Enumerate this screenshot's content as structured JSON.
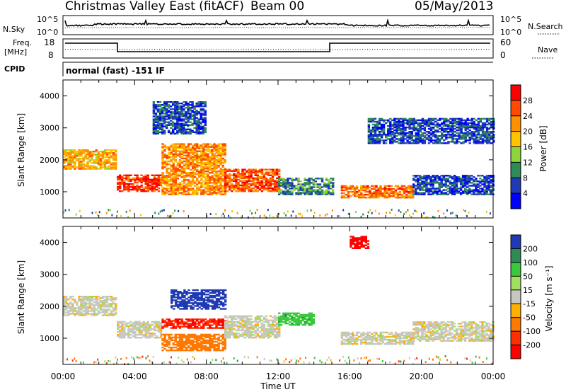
{
  "header": {
    "title": "Christmas Valley East (fitACF)",
    "beam": "Beam 00",
    "date": "05/May/2013"
  },
  "panels": {
    "nsky": {
      "left_label": "N.Sky",
      "left_ticks": [
        "10^5",
        "10^0"
      ],
      "right_ticks": [
        "10^5",
        "10^0"
      ],
      "right_label": "N.Search"
    },
    "freq": {
      "left_label_line1": "Freq.",
      "left_label_line2": "[MHz]",
      "left_ticks": [
        "18",
        "8"
      ],
      "right_ticks": [
        "60",
        "0"
      ],
      "right_label": "Nave"
    },
    "cpid": {
      "label": "CPID",
      "text": "normal (fast) -151 IF"
    }
  },
  "power_colorbar": {
    "label": "Power [dB]",
    "ticks": [
      "28",
      "24",
      "20",
      "16",
      "12",
      "8",
      "4"
    ],
    "colors": [
      "#ff0000",
      "#ff4a00",
      "#ff9000",
      "#ffc400",
      "#8cd53c",
      "#2e8b57",
      "#1f3ab4",
      "#0000ff"
    ]
  },
  "velocity_colorbar": {
    "label": "Velocity [m s⁻¹]",
    "ticks": [
      "200",
      "100",
      "50",
      "15",
      "-15",
      "-50",
      "-100",
      "-200"
    ],
    "colors": [
      "#1f3ab4",
      "#2e8b57",
      "#3cc83c",
      "#a0e060",
      "#c8c8c0",
      "#ffb000",
      "#ff7800",
      "#ff3000",
      "#ff0000"
    ]
  },
  "chart_data": [
    {
      "type": "heatmap",
      "title": "Power",
      "xlabel": "Time UT",
      "ylabel": "Slant Range [km]",
      "x_ticks": [
        "00:00",
        "04:00",
        "08:00",
        "12:00",
        "16:00",
        "20:00",
        "00:00"
      ],
      "x_range_hours": [
        0,
        24
      ],
      "y_ticks": [
        1000,
        2000,
        3000,
        4000
      ],
      "ylim": [
        180,
        4500
      ],
      "bands": [
        {
          "t": [
            0,
            3
          ],
          "r": [
            1700,
            2300
          ],
          "level": 20
        },
        {
          "t": [
            3,
            5.5
          ],
          "r": [
            1000,
            1500
          ],
          "level": 28
        },
        {
          "t": [
            5.5,
            9
          ],
          "r": [
            900,
            2500
          ],
          "level": 22
        },
        {
          "t": [
            9,
            12
          ],
          "r": [
            1000,
            1700
          ],
          "level": 26
        },
        {
          "t": [
            12,
            15
          ],
          "r": [
            900,
            1400
          ],
          "level": 10
        },
        {
          "t": [
            15.5,
            19.5
          ],
          "r": [
            800,
            1200
          ],
          "level": 24
        },
        {
          "t": [
            19.5,
            24
          ],
          "r": [
            900,
            1500
          ],
          "level": 6
        },
        {
          "t": [
            17,
            24
          ],
          "r": [
            2500,
            3300
          ],
          "level": 6
        },
        {
          "t": [
            5,
            8
          ],
          "r": [
            2800,
            3800
          ],
          "level": 6
        }
      ]
    },
    {
      "type": "heatmap",
      "title": "Velocity",
      "xlabel": "Time UT",
      "ylabel": "Slant Range [km]",
      "x_ticks": [
        "00:00",
        "04:00",
        "08:00",
        "12:00",
        "16:00",
        "20:00",
        "00:00"
      ],
      "x_range_hours": [
        0,
        24
      ],
      "y_ticks": [
        1000,
        2000,
        3000,
        4000
      ],
      "ylim": [
        180,
        4500
      ],
      "bands": [
        {
          "t": [
            0,
            3
          ],
          "r": [
            1700,
            2300
          ],
          "velocity": 0
        },
        {
          "t": [
            3,
            5.5
          ],
          "r": [
            1000,
            1500
          ],
          "velocity": 0
        },
        {
          "t": [
            5.5,
            9
          ],
          "r": [
            600,
            1100
          ],
          "velocity": -50
        },
        {
          "t": [
            5.5,
            9
          ],
          "r": [
            1300,
            1600
          ],
          "velocity": -150
        },
        {
          "t": [
            6,
            9
          ],
          "r": [
            1900,
            2500
          ],
          "velocity": 200
        },
        {
          "t": [
            9,
            12
          ],
          "r": [
            1000,
            1700
          ],
          "velocity": 0
        },
        {
          "t": [
            12,
            14
          ],
          "r": [
            1400,
            1800
          ],
          "velocity": 60
        },
        {
          "t": [
            15.5,
            19.5
          ],
          "r": [
            800,
            1200
          ],
          "velocity": 0
        },
        {
          "t": [
            19.5,
            24
          ],
          "r": [
            900,
            1500
          ],
          "velocity": 0
        },
        {
          "t": [
            16,
            17
          ],
          "r": [
            3800,
            4200
          ],
          "velocity": -200
        }
      ]
    }
  ]
}
